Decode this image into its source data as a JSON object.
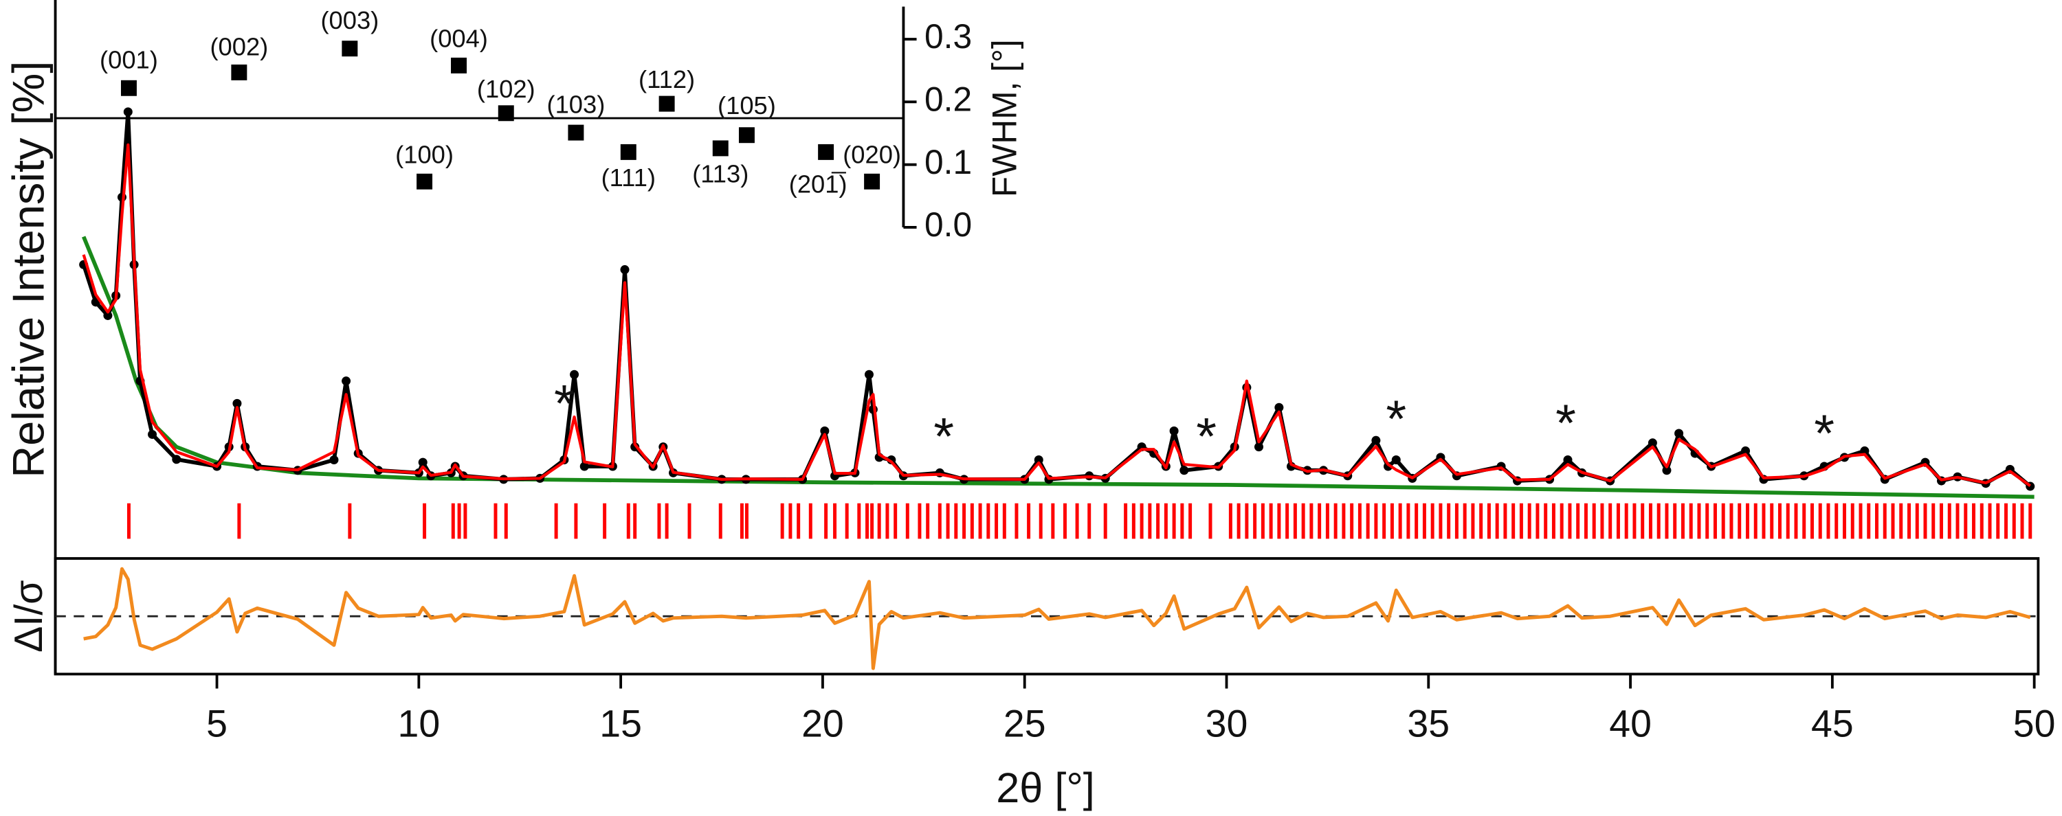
{
  "chart_data": [
    {
      "type": "line",
      "ylabel": "Relative Intensity [%]",
      "xlim": [
        1,
        50
      ],
      "ylim": [
        0,
        100
      ],
      "x": [
        1.7,
        2.0,
        2.3,
        2.5,
        2.65,
        2.8,
        2.95,
        3.1,
        3.4,
        4,
        5,
        5.3,
        5.5,
        5.7,
        6,
        7,
        7.9,
        8.2,
        8.5,
        9,
        10,
        10.1,
        10.3,
        10.8,
        10.9,
        11.1,
        12.1,
        13,
        13.6,
        13.85,
        14.1,
        14.8,
        15.1,
        15.35,
        15.8,
        16.05,
        16.3,
        17.5,
        18.1,
        19.5,
        20.05,
        20.3,
        20.8,
        21.15,
        21.25,
        21.4,
        21.7,
        22,
        22.9,
        23.5,
        25,
        25.35,
        25.6,
        26.6,
        27,
        27.9,
        28.2,
        28.5,
        28.7,
        28.95,
        29.8,
        30.2,
        30.5,
        30.8,
        31.3,
        31.6,
        32,
        32.4,
        33,
        33.7,
        34,
        34.2,
        34.6,
        35.3,
        35.7,
        36.8,
        37.2,
        38,
        38.45,
        38.8,
        39.5,
        40.55,
        40.9,
        41.2,
        41.6,
        42,
        42.85,
        43.3,
        44.3,
        44.8,
        45.3,
        45.8,
        46.3,
        47.3,
        47.7,
        48.1,
        48.8,
        49.4,
        49.9
      ],
      "series": [
        {
          "color": "#000000",
          "marker": "dot",
          "values": [
            47,
            39.5,
            36.8,
            40.8,
            60.5,
            77.6,
            47,
            23.7,
            13,
            8,
            6.6,
            10.5,
            19.2,
            10.5,
            6.6,
            5.8,
            7.9,
            23.7,
            9.2,
            5.8,
            5.3,
            7.4,
            4.7,
            5.3,
            6.6,
            4.7,
            4,
            4.2,
            7.9,
            25,
            6.6,
            6.6,
            46,
            10.5,
            6.6,
            10.5,
            5.3,
            4,
            4,
            4,
            13.7,
            4.7,
            5.3,
            25,
            18,
            8.4,
            7.9,
            4.7,
            5.3,
            4,
            4,
            7.9,
            4,
            4.7,
            4.2,
            10.5,
            9.2,
            6.6,
            13.7,
            5.8,
            6.6,
            10.5,
            22.4,
            10.5,
            18.4,
            6.6,
            5.8,
            5.8,
            4.7,
            11.8,
            6.6,
            7.9,
            4.2,
            8.4,
            4.7,
            6.6,
            3.7,
            4,
            7.9,
            5.3,
            3.7,
            11.3,
            5.8,
            13.2,
            9.2,
            6.6,
            9.7,
            4,
            4.7,
            6.6,
            8.4,
            9.7,
            4,
            7.4,
            3.7,
            4.5,
            3.2,
            6,
            2.6
          ]
        },
        {
          "color": "#ff0000",
          "values": [
            49,
            41,
            37.5,
            40,
            57,
            71,
            48,
            26,
            15.5,
            9.5,
            6.6,
            9.5,
            18.4,
            10,
            6.3,
            5.9,
            9.5,
            21,
            8.8,
            5.8,
            5.3,
            6.5,
            4.8,
            5.4,
            6.9,
            4.6,
            4.1,
            4.2,
            7.5,
            16.5,
            7.5,
            6.5,
            43.4,
            11,
            6.4,
            10.8,
            5.4,
            4,
            4.1,
            4,
            13,
            5.2,
            5.2,
            19.7,
            21,
            9,
            7.5,
            4.8,
            5,
            4.1,
            4,
            7.3,
            4.2,
            4.5,
            4.3,
            10,
            10,
            6.3,
            11.5,
            7,
            6.4,
            9.8,
            23.7,
            11.5,
            17.5,
            7,
            5.6,
            5.9,
            4.7,
            10.6,
            7,
            5.9,
            4.3,
            8,
            5,
            6.3,
            3.9,
            4,
            7,
            5.4,
            3.7,
            10.5,
            6.5,
            12,
            10,
            6.5,
            9,
            4.3,
            4.6,
            6,
            8.6,
            9,
            4.2,
            7,
            3.9,
            4.4,
            3.3,
            5.6,
            2.7
          ]
        },
        {
          "color": "#1a8a1a",
          "x": [
            1.7,
            2.5,
            3,
            3.5,
            4,
            5,
            7,
            10,
            20,
            30,
            40,
            50
          ],
          "values": [
            52.6,
            36.8,
            23.7,
            14.5,
            10.5,
            7.4,
            5.3,
            4.2,
            3.4,
            2.9,
            1.8,
            0.5
          ]
        }
      ],
      "reflections": {
        "color": "#ff0000",
        "x": [
          2.82,
          5.55,
          8.29,
          10.14,
          10.85,
          11.0,
          11.15,
          11.9,
          12.16,
          13.4,
          13.89,
          14.6,
          15.19,
          15.35,
          15.95,
          16.14,
          16.7,
          17.47,
          18.0,
          18.12,
          19.0,
          19.2,
          19.4,
          19.7,
          20.08,
          20.3,
          20.6,
          20.9,
          21.1,
          21.22,
          21.4,
          21.6,
          21.8,
          22.1,
          22.4,
          22.6,
          22.9,
          23.1,
          23.3,
          23.5,
          23.7,
          23.9,
          24.1,
          24.3,
          24.5,
          24.8,
          25.1,
          25.4,
          25.7,
          26.0,
          26.3,
          26.6,
          27.0,
          27.5,
          27.7,
          27.9,
          28.1,
          28.3,
          28.5,
          28.7,
          28.9,
          29.1,
          29.6,
          30.1,
          30.3,
          30.5,
          30.7,
          30.9,
          31.1,
          31.3,
          31.5,
          31.7,
          31.9,
          32.1,
          32.3,
          32.5,
          32.7,
          32.9,
          33.1,
          33.3,
          33.5,
          33.7,
          33.9,
          34.1,
          34.3,
          34.5,
          34.7,
          34.9,
          35.1,
          35.3,
          35.5,
          35.7,
          35.9,
          36.1,
          36.3,
          36.5,
          36.7,
          36.9,
          37.1,
          37.3,
          37.5,
          37.7,
          37.9,
          38.1,
          38.3,
          38.5,
          38.7,
          38.9,
          39.1,
          39.3,
          39.5,
          39.7,
          39.9,
          40.1,
          40.3,
          40.5,
          40.7,
          40.9,
          41.1,
          41.3,
          41.5,
          41.7,
          41.9,
          42.1,
          42.3,
          42.5,
          42.7,
          42.9,
          43.1,
          43.3,
          43.5,
          43.7,
          43.9,
          44.1,
          44.3,
          44.5,
          44.7,
          44.9,
          45.1,
          45.3,
          45.5,
          45.7,
          45.9,
          46.1,
          46.3,
          46.5,
          46.7,
          46.9,
          47.1,
          47.3,
          47.5,
          47.7,
          47.9,
          48.1,
          48.3,
          48.5,
          48.7,
          48.9,
          49.1,
          49.3,
          49.5,
          49.7,
          49.9
        ]
      },
      "annotations": [
        {
          "text": "*",
          "x": 13.6,
          "y": 18.4
        },
        {
          "text": "*",
          "x": 23.0,
          "y": 11.8
        },
        {
          "text": "*",
          "x": 29.5,
          "y": 11.8
        },
        {
          "text": "*",
          "x": 34.2,
          "y": 15.3
        },
        {
          "text": "*",
          "x": 38.4,
          "y": 14.5
        },
        {
          "text": "*",
          "x": 44.8,
          "y": 12.4
        }
      ]
    },
    {
      "type": "line",
      "ylabel": "ΔI/σ",
      "xlabel": "2θ [°]",
      "xlim": [
        1,
        50
      ],
      "ylim": [
        -10,
        10
      ],
      "xticks": [
        5,
        10,
        15,
        20,
        25,
        30,
        35,
        40,
        45,
        50
      ],
      "x": [
        1.7,
        2.0,
        2.3,
        2.5,
        2.65,
        2.8,
        2.95,
        3.1,
        3.4,
        4,
        5,
        5.3,
        5.5,
        5.7,
        6,
        7,
        7.9,
        8.2,
        8.5,
        9,
        10,
        10.1,
        10.3,
        10.8,
        10.9,
        11.1,
        12.1,
        13,
        13.6,
        13.85,
        14.1,
        14.8,
        15.1,
        15.35,
        15.8,
        16.05,
        16.3,
        17.5,
        18.1,
        19.5,
        20.05,
        20.3,
        20.8,
        21.15,
        21.25,
        21.4,
        21.7,
        22,
        22.9,
        23.5,
        25,
        25.35,
        25.6,
        26.6,
        27,
        27.9,
        28.2,
        28.5,
        28.7,
        28.95,
        29.8,
        30.2,
        30.5,
        30.8,
        31.3,
        31.6,
        32,
        32.4,
        33,
        33.7,
        34,
        34.2,
        34.6,
        35.3,
        35.7,
        36.8,
        37.2,
        38,
        38.45,
        38.8,
        39.5,
        40.55,
        40.9,
        41.2,
        41.6,
        42,
        42.85,
        43.3,
        44.3,
        44.8,
        45.3,
        45.8,
        46.3,
        47.3,
        47.7,
        48.1,
        48.8,
        49.4,
        49.9
      ],
      "series": [
        {
          "color": "#f28a1e",
          "values": [
            -3.9,
            -3.5,
            -1.5,
            1.5,
            8.2,
            6.4,
            -0.5,
            -5,
            -5.7,
            -3.9,
            0.7,
            3,
            -2.7,
            0.5,
            1.4,
            -0.5,
            -5,
            4.1,
            1.4,
            0,
            0.3,
            1.5,
            -0.3,
            0.2,
            -0.8,
            0.3,
            -0.4,
            0,
            0.8,
            7,
            -1.5,
            0.4,
            2.5,
            -1.2,
            0.5,
            -0.8,
            -0.3,
            0,
            -0.3,
            0.2,
            1,
            -1.2,
            0.2,
            6,
            -9,
            -1.4,
            0.8,
            -0.3,
            0.6,
            -0.3,
            0.2,
            1.2,
            -0.5,
            0.4,
            -0.2,
            1,
            -1.6,
            0.5,
            3.5,
            -2.2,
            0.4,
            1.3,
            5,
            -2,
            1.6,
            -0.9,
            0.5,
            -0.2,
            0,
            2.3,
            -0.8,
            4.5,
            -0.2,
            0.8,
            -0.6,
            0.6,
            -0.4,
            0,
            1.8,
            -0.3,
            0,
            1.5,
            -1.4,
            2.8,
            -1.6,
            0.2,
            1.3,
            -0.6,
            0.2,
            1.1,
            -0.4,
            1.3,
            -0.4,
            0.9,
            -0.4,
            0.2,
            -0.2,
            0.8,
            -0.2
          ]
        }
      ]
    },
    {
      "type": "scatter",
      "ylabel": "FWHM, [°]",
      "xlim": [
        1,
        50
      ],
      "ylim": [
        0,
        0.352
      ],
      "yticks": [
        {
          "value": 0,
          "label": "0.0"
        },
        0.1,
        0.2,
        0.3
      ],
      "hline": 0.174,
      "color": "#000000",
      "x": [
        2.82,
        5.55,
        8.29,
        10.14,
        10.99,
        12.16,
        13.89,
        15.19,
        16.14,
        17.47,
        18.12,
        20.08,
        21.22
      ],
      "values": [
        0.222,
        0.247,
        0.285,
        0.073,
        0.258,
        0.182,
        0.151,
        0.12,
        0.197,
        0.126,
        0.147,
        0.12,
        0.073
      ],
      "point_labels": [
        "(001)",
        "(002)",
        "(003)",
        "(100)",
        "(004)",
        "(102)",
        "(103)",
        "(111)",
        "(112)",
        "(113)",
        "(105)",
        "(201̅)",
        "(020)"
      ]
    }
  ]
}
